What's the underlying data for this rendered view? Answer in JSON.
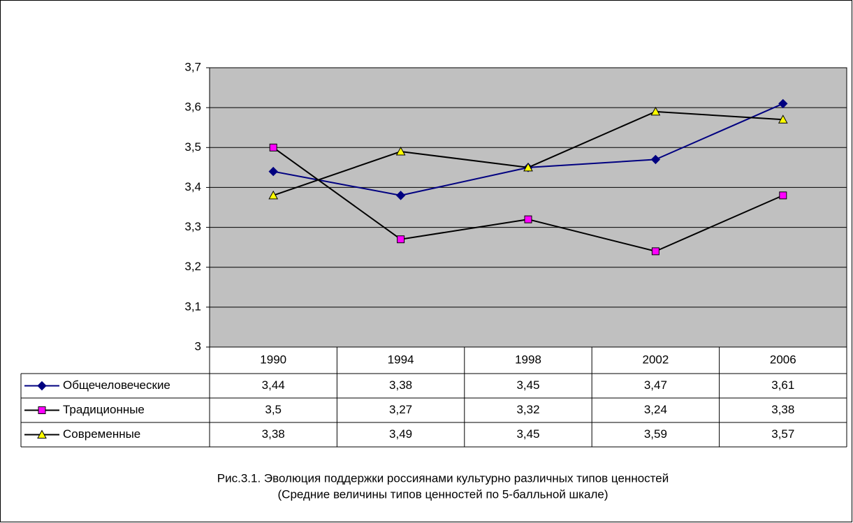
{
  "chart_data": {
    "type": "line",
    "categories": [
      "1990",
      "1994",
      "1998",
      "2002",
      "2006"
    ],
    "series": [
      {
        "name": "Общечеловеческие",
        "color": "#000080",
        "marker": "diamond",
        "marker_color": "#000080",
        "values": [
          3.44,
          3.38,
          3.45,
          3.47,
          3.61
        ],
        "value_labels": [
          "3,44",
          "3,38",
          "3,45",
          "3,47",
          "3,61"
        ]
      },
      {
        "name": "Традиционные",
        "color": "#000000",
        "marker": "square",
        "marker_color": "#ff00ff",
        "values": [
          3.5,
          3.27,
          3.32,
          3.24,
          3.38
        ],
        "value_labels": [
          "3,5",
          "3,27",
          "3,32",
          "3,24",
          "3,38"
        ]
      },
      {
        "name": "Современные",
        "color": "#000000",
        "marker": "triangle",
        "marker_color": "#ffff00",
        "values": [
          3.38,
          3.49,
          3.45,
          3.59,
          3.57
        ],
        "value_labels": [
          "3,38",
          "3,49",
          "3,45",
          "3,59",
          "3,57"
        ]
      }
    ],
    "ylim": [
      3,
      3.7
    ],
    "yticks": [
      3,
      {
        "value": 3.1,
        "label": "3,1"
      },
      {
        "value": 3.2,
        "label": "3,2"
      },
      {
        "value": 3.3,
        "label": "3,3"
      },
      {
        "value": 3.4,
        "label": "3,4"
      },
      {
        "value": 3.5,
        "label": "3,5"
      },
      {
        "value": 3.6,
        "label": "3,6"
      },
      {
        "value": 3.7,
        "label": "3,7"
      }
    ],
    "grid": true,
    "plot_background": "#c0c0c0",
    "caption": [
      "Рис.3.1. Эволюция поддержки россиянами культурно различных типов ценностей",
      "(Средние величины типов ценностей по 5-балльной шкале)"
    ]
  }
}
